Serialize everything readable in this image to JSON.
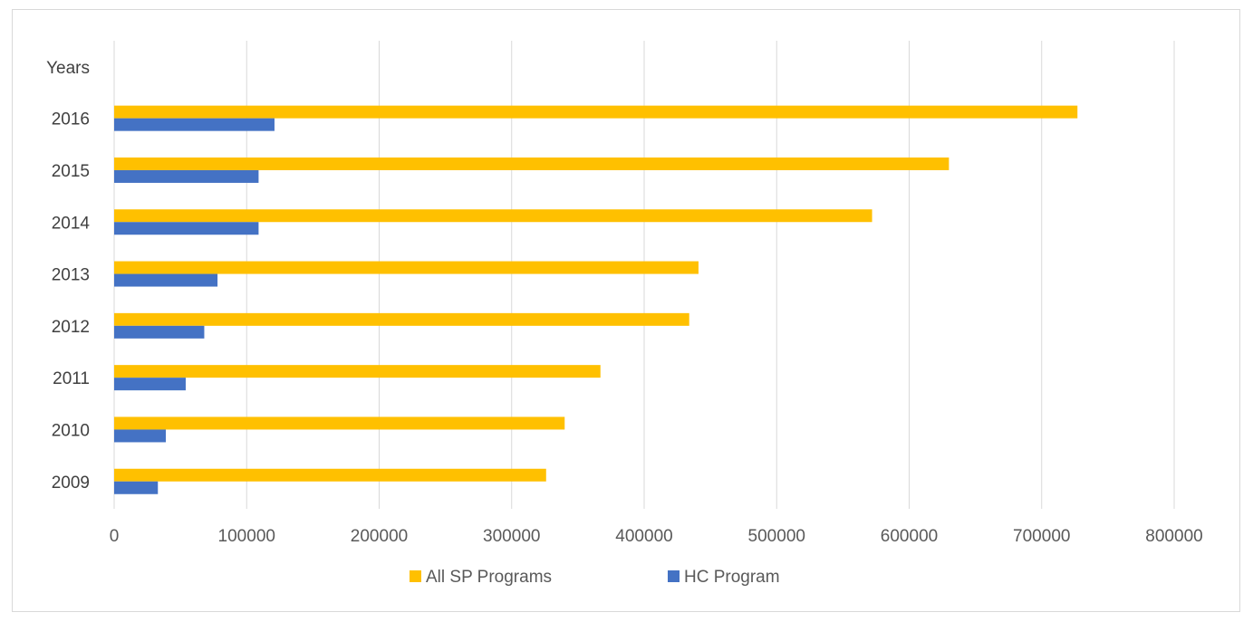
{
  "chart_data": {
    "type": "bar",
    "orientation": "horizontal",
    "y_header": "Years",
    "categories": [
      "2016",
      "2015",
      "2014",
      "2013",
      "2012",
      "2011",
      "2010",
      "2009"
    ],
    "series": [
      {
        "name": "All SP Programs",
        "color": "#FFC000",
        "values": [
          727000,
          630000,
          572000,
          441000,
          434000,
          367000,
          340000,
          326000
        ]
      },
      {
        "name": "HC Program",
        "color": "#4472C4",
        "values": [
          121000,
          109000,
          109000,
          78000,
          68000,
          54000,
          39000,
          33000
        ]
      }
    ],
    "xlim": [
      0,
      800000
    ],
    "xticks": [
      "0",
      "100000",
      "200000",
      "300000",
      "400000",
      "500000",
      "600000",
      "700000",
      "800000"
    ],
    "grid": true,
    "legend_position": "bottom"
  }
}
